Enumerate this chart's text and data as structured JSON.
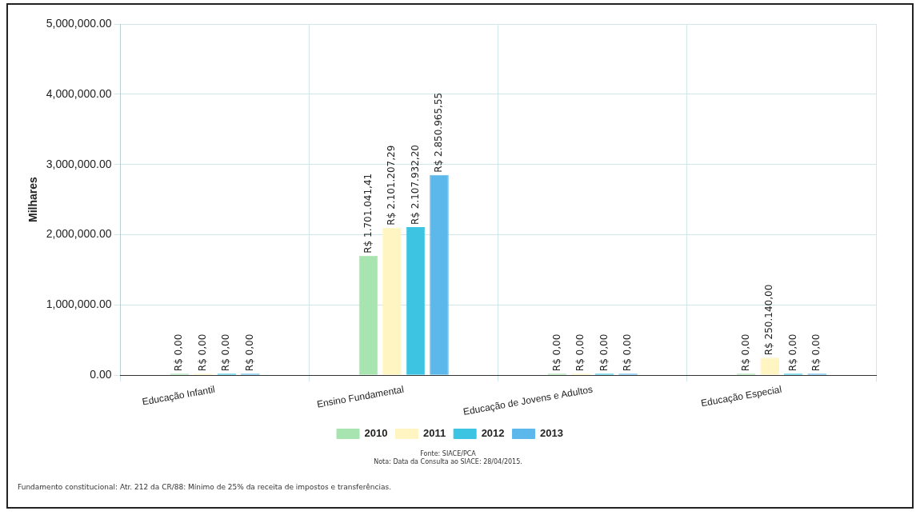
{
  "chart_data": {
    "type": "bar",
    "ylabel": "Milhares",
    "categories": [
      "Educação Infantil",
      "Ensino Fundamental",
      "Educação de Jovens e Adultos",
      "Educação Especial"
    ],
    "series": [
      {
        "name": "2010",
        "color": "#a8e4b0",
        "values": [
          0,
          1701041.41,
          0,
          0
        ],
        "value_labels": [
          "R$ 0,00",
          "R$ 1.701.041,41",
          "R$ 0,00",
          "R$ 0,00"
        ]
      },
      {
        "name": "2011",
        "color": "#fff5c2",
        "values": [
          0,
          2101207.29,
          0,
          250140.0
        ],
        "value_labels": [
          "R$ 0,00",
          "R$ 2.101.207,29",
          "R$ 0,00",
          "R$ 250.140,00"
        ]
      },
      {
        "name": "2012",
        "color": "#3cc4e2",
        "values": [
          0,
          2107932.2,
          0,
          0
        ],
        "value_labels": [
          "R$ 0,00",
          "R$ 2.107.932,20",
          "R$ 0,00",
          "R$ 0,00"
        ]
      },
      {
        "name": "2013",
        "color": "#5cb8ea",
        "values": [
          0,
          2850965.55,
          0,
          0
        ],
        "value_labels": [
          "R$ 0,00",
          "R$ 2.850.965,55",
          "R$ 0,00",
          "R$ 0,00"
        ]
      }
    ],
    "ylim": [
      0,
      5000000
    ],
    "yticks": [
      {
        "value": 0,
        "label": "0.00"
      },
      {
        "value": 1000000,
        "label": "1,000,000.00"
      },
      {
        "value": 2000000,
        "label": "2,000,000.00"
      },
      {
        "value": 3000000,
        "label": "3,000,000.00"
      },
      {
        "value": 4000000,
        "label": "4,000,000.00"
      },
      {
        "value": 5000000,
        "label": "5,000,000.00"
      }
    ],
    "grid": true,
    "legend": "bottom",
    "annotations": [
      "Fonte: SIACE/PCA",
      "Nota: Data da Consulta ao SIACE: 28/04/2015.",
      "Fundamento constitucional: Atr. 212 da CR/88: Mínimo de 25% da receita de impostos e transferências."
    ]
  }
}
